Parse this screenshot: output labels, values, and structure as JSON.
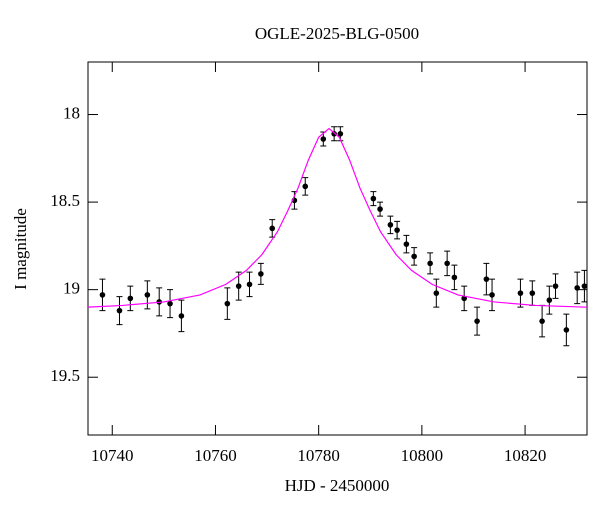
{
  "chart_data": {
    "type": "scatter",
    "title": "OGLE-2025-BLG-0500",
    "xlabel": "HJD - 2450000",
    "ylabel": "I magnitude",
    "xlim": [
      10735.3,
      10832
    ],
    "ylim": [
      17.7,
      19.83
    ],
    "invert_y": true,
    "xticks": [
      10740,
      10760,
      10780,
      10800,
      10820
    ],
    "yticks": [
      18,
      18.5,
      19,
      19.5
    ],
    "series": [
      {
        "type": "scatter",
        "color": "#000000",
        "x": [
          10738.1,
          10741.4,
          10743.5,
          10746.8,
          10749.1,
          10751.2,
          10753.4,
          10762.3,
          10764.5,
          10766.6,
          10768.8,
          10771.0,
          10775.3,
          10777.4,
          10780.9,
          10783.0,
          10784.2,
          10790.6,
          10791.9,
          10793.9,
          10795.2,
          10797.0,
          10798.5,
          10801.6,
          10802.8,
          10804.9,
          10806.3,
          10808.2,
          10810.7,
          10812.5,
          10813.6,
          10819.1,
          10821.4,
          10823.3,
          10824.7,
          10825.9,
          10828.0,
          10830.1,
          10831.5
        ],
        "values": [
          19.03,
          19.12,
          19.05,
          19.03,
          19.07,
          19.08,
          19.15,
          19.08,
          18.98,
          18.97,
          18.91,
          18.65,
          18.49,
          18.41,
          18.14,
          18.11,
          18.11,
          18.48,
          18.54,
          18.63,
          18.66,
          18.74,
          18.81,
          18.85,
          19.02,
          18.85,
          18.93,
          19.05,
          19.18,
          18.94,
          19.03,
          19.02,
          19.02,
          19.18,
          19.06,
          18.98,
          19.23,
          18.99,
          18.98
        ],
        "errors": [
          0.09,
          0.08,
          0.07,
          0.08,
          0.08,
          0.08,
          0.09,
          0.09,
          0.08,
          0.07,
          0.06,
          0.05,
          0.05,
          0.05,
          0.04,
          0.04,
          0.04,
          0.04,
          0.04,
          0.05,
          0.05,
          0.05,
          0.05,
          0.06,
          0.08,
          0.07,
          0.07,
          0.07,
          0.08,
          0.09,
          0.09,
          0.08,
          0.07,
          0.09,
          0.08,
          0.07,
          0.09,
          0.09,
          0.09
        ]
      },
      {
        "type": "line",
        "color": "#ff00ff",
        "x": [
          10735,
          10742,
          10750,
          10757,
          10762,
          10766,
          10769,
          10772,
          10774,
          10776,
          10778,
          10780,
          10782,
          10784,
          10786,
          10788,
          10790,
          10792,
          10795,
          10798,
          10802,
          10807,
          10814,
          10822,
          10832
        ],
        "values": [
          19.1,
          19.09,
          19.07,
          19.03,
          18.97,
          18.89,
          18.8,
          18.67,
          18.55,
          18.42,
          18.26,
          18.13,
          18.08,
          18.13,
          18.26,
          18.42,
          18.55,
          18.67,
          18.8,
          18.89,
          18.97,
          19.03,
          19.07,
          19.09,
          19.1
        ]
      }
    ]
  }
}
